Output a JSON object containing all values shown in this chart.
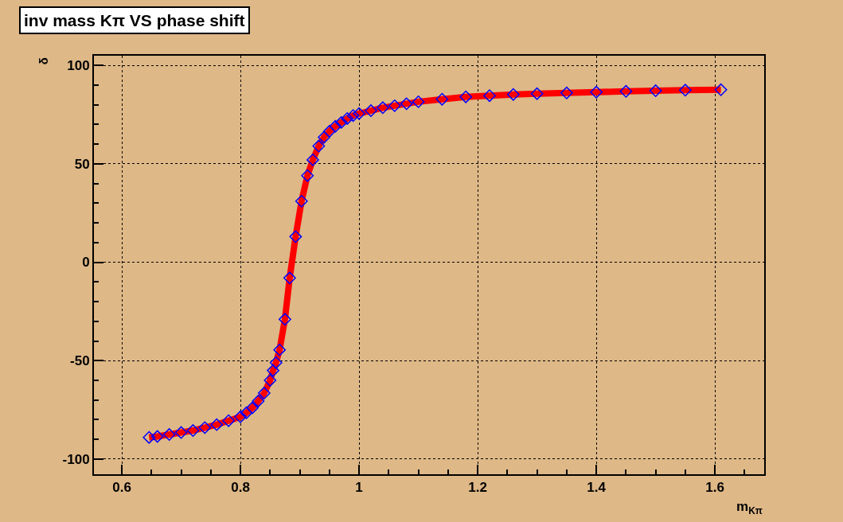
{
  "chart_data": {
    "type": "line",
    "title": "inv mass Kπ VS phase shift",
    "xlabel": "m$_{Kπ}$",
    "ylabel": "δ",
    "x": [
      0.646,
      0.66,
      0.68,
      0.7,
      0.72,
      0.74,
      0.76,
      0.78,
      0.8,
      0.81,
      0.82,
      0.83,
      0.84,
      0.85,
      0.855,
      0.86,
      0.866,
      0.875,
      0.883,
      0.893,
      0.903,
      0.913,
      0.922,
      0.932,
      0.941,
      0.95,
      0.96,
      0.97,
      0.98,
      0.99,
      1.0,
      1.02,
      1.04,
      1.06,
      1.08,
      1.1,
      1.14,
      1.18,
      1.22,
      1.26,
      1.3,
      1.35,
      1.4,
      1.45,
      1.5,
      1.55,
      1.61
    ],
    "series": [
      {
        "color": "#ff0000",
        "line_style": "solid",
        "values": [
          -89,
          -88.5,
          -87.5,
          -86.5,
          -85.5,
          -84,
          -82.5,
          -80.5,
          -78.5,
          -76.5,
          -74,
          -70.5,
          -66.5,
          -60,
          -55,
          -51,
          -44.5,
          -29,
          -8,
          13,
          31,
          44,
          52,
          59,
          63.5,
          66.5,
          69,
          71,
          73,
          74.5,
          75.5,
          77,
          78.5,
          79.5,
          80.5,
          81.5,
          82.8,
          84,
          84.6,
          85.2,
          85.6,
          86,
          86.4,
          86.8,
          87.1,
          87.4,
          87.6
        ]
      },
      {
        "type": "scatter",
        "color": "#0000ff",
        "marker": "diamond",
        "values": [
          -89,
          -88.5,
          -87.5,
          -86.5,
          -85.5,
          -84,
          -82.5,
          -80.5,
          -78.5,
          -76.5,
          -74,
          -70.5,
          -66.5,
          -60,
          -55,
          -51,
          -44.5,
          -29,
          -8,
          13,
          31,
          44,
          52,
          59,
          63.5,
          66.5,
          69,
          71,
          73,
          74.5,
          75.5,
          77,
          78.5,
          79.5,
          80.5,
          81.5,
          82.8,
          84,
          84.6,
          85.2,
          85.6,
          86,
          86.4,
          86.8,
          87.1,
          87.4,
          87.6
        ]
      }
    ],
    "xlim": [
      0.553,
      1.683
    ],
    "xticks": [
      0.6,
      0.8,
      {
        "value": 1.0,
        "label": "1"
      },
      1.2,
      1.4,
      1.6
    ],
    "ylim": [
      -107.7,
      104.9
    ],
    "yticks": [
      -100,
      -50,
      0,
      50,
      100
    ],
    "grid": true
  }
}
